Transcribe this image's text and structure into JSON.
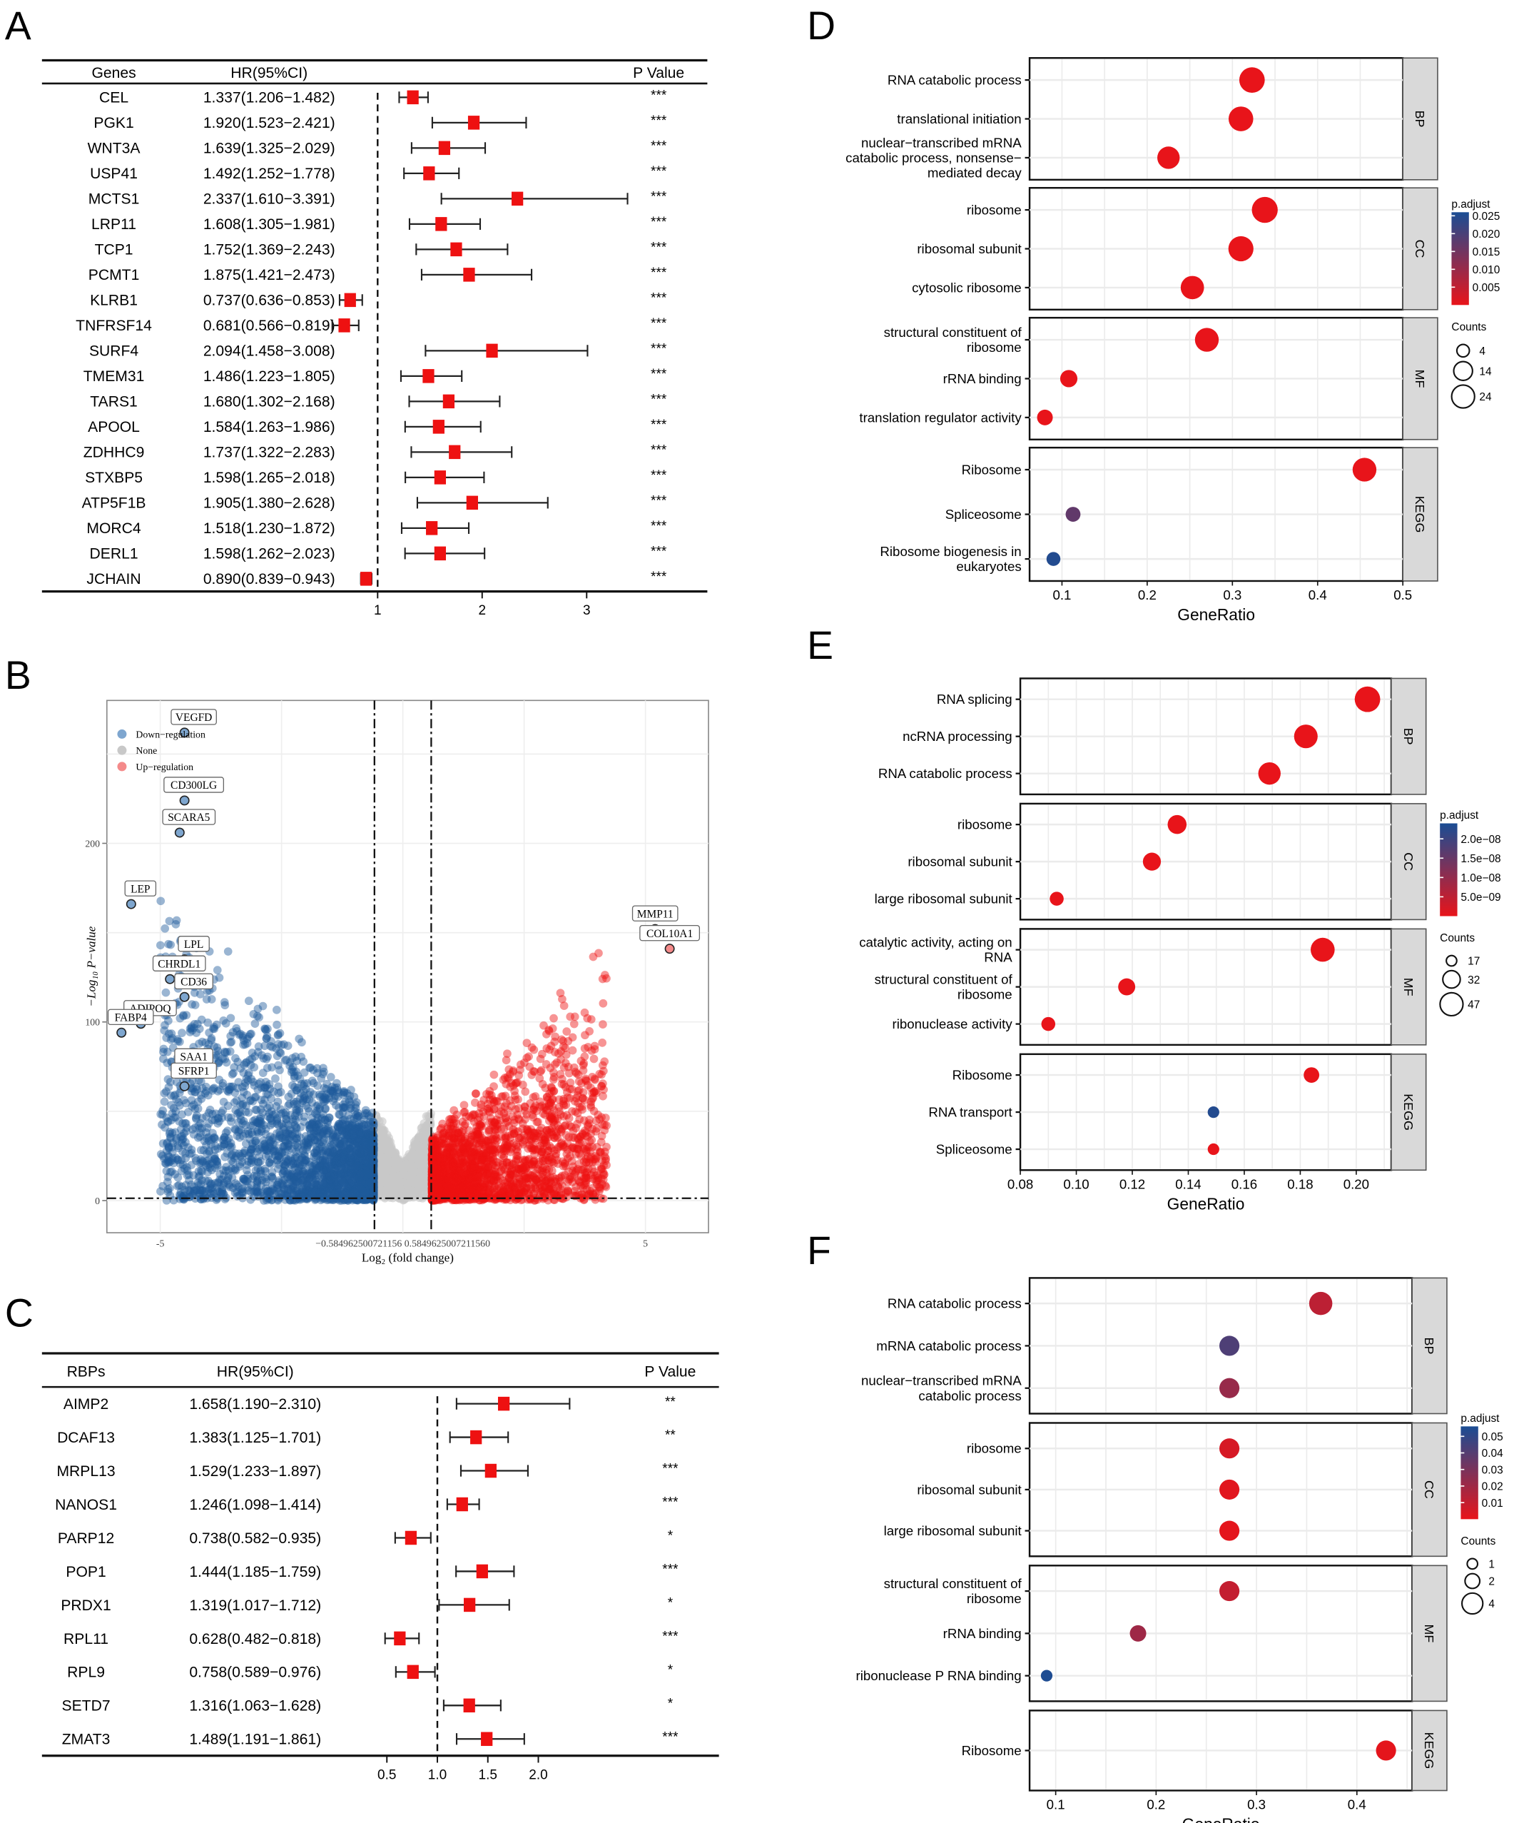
{
  "panels": {
    "A": "A",
    "B": "B",
    "C": "C",
    "D": "D",
    "E": "E",
    "F": "F"
  },
  "colors": {
    "marker": "#ee1111",
    "down": "#1f5a9c",
    "down_light": "#7ea6cf",
    "none": "#c8c8c8",
    "up": "#ee1111",
    "up_light": "#f48a8a",
    "padj_low": "#e8141a",
    "padj_high": "#1a4d94",
    "strip": "#d9d9d9"
  },
  "chart_data": [
    {
      "id": "A",
      "type": "forest",
      "headers": {
        "name": "Genes",
        "hr": "HR(95%CI)",
        "p": "P Value"
      },
      "x_ticks": [
        1,
        2,
        3
      ],
      "xlim": [
        0.55,
        3.6
      ],
      "ref_line": 1,
      "rows": [
        {
          "name": "CEL",
          "hr": 1.337,
          "lo": 1.206,
          "hi": 1.482,
          "label": "1.337(1.206−1.482)",
          "p": "***"
        },
        {
          "name": "PGK1",
          "hr": 1.92,
          "lo": 1.523,
          "hi": 2.421,
          "label": "1.920(1.523−2.421)",
          "p": "***"
        },
        {
          "name": "WNT3A",
          "hr": 1.639,
          "lo": 1.325,
          "hi": 2.029,
          "label": "1.639(1.325−2.029)",
          "p": "***"
        },
        {
          "name": "USP41",
          "hr": 1.492,
          "lo": 1.252,
          "hi": 1.778,
          "label": "1.492(1.252−1.778)",
          "p": "***"
        },
        {
          "name": "MCTS1",
          "hr": 2.337,
          "lo": 1.61,
          "hi": 3.391,
          "label": "2.337(1.610−3.391)",
          "p": "***"
        },
        {
          "name": "LRP11",
          "hr": 1.608,
          "lo": 1.305,
          "hi": 1.981,
          "label": "1.608(1.305−1.981)",
          "p": "***"
        },
        {
          "name": "TCP1",
          "hr": 1.752,
          "lo": 1.369,
          "hi": 2.243,
          "label": "1.752(1.369−2.243)",
          "p": "***"
        },
        {
          "name": "PCMT1",
          "hr": 1.875,
          "lo": 1.421,
          "hi": 2.473,
          "label": "1.875(1.421−2.473)",
          "p": "***"
        },
        {
          "name": "KLRB1",
          "hr": 0.737,
          "lo": 0.636,
          "hi": 0.853,
          "label": "0.737(0.636−0.853)",
          "p": "***"
        },
        {
          "name": "TNFRSF14",
          "hr": 0.681,
          "lo": 0.566,
          "hi": 0.819,
          "label": "0.681(0.566−0.819)",
          "p": "***"
        },
        {
          "name": "SURF4",
          "hr": 2.094,
          "lo": 1.458,
          "hi": 3.008,
          "label": "2.094(1.458−3.008)",
          "p": "***"
        },
        {
          "name": "TMEM31",
          "hr": 1.486,
          "lo": 1.223,
          "hi": 1.805,
          "label": "1.486(1.223−1.805)",
          "p": "***"
        },
        {
          "name": "TARS1",
          "hr": 1.68,
          "lo": 1.302,
          "hi": 2.168,
          "label": "1.680(1.302−2.168)",
          "p": "***"
        },
        {
          "name": "APOOL",
          "hr": 1.584,
          "lo": 1.263,
          "hi": 1.986,
          "label": "1.584(1.263−1.986)",
          "p": "***"
        },
        {
          "name": "ZDHHC9",
          "hr": 1.737,
          "lo": 1.322,
          "hi": 2.283,
          "label": "1.737(1.322−2.283)",
          "p": "***"
        },
        {
          "name": "STXBP5",
          "hr": 1.598,
          "lo": 1.265,
          "hi": 2.018,
          "label": "1.598(1.265−2.018)",
          "p": "***"
        },
        {
          "name": "ATP5F1B",
          "hr": 1.905,
          "lo": 1.38,
          "hi": 2.628,
          "label": "1.905(1.380−2.628)",
          "p": "***"
        },
        {
          "name": "MORC4",
          "hr": 1.518,
          "lo": 1.23,
          "hi": 1.872,
          "label": "1.518(1.230−1.872)",
          "p": "***"
        },
        {
          "name": "DERL1",
          "hr": 1.598,
          "lo": 1.262,
          "hi": 2.023,
          "label": "1.598(1.262−2.023)",
          "p": "***"
        },
        {
          "name": "JCHAIN",
          "hr": 0.89,
          "lo": 0.839,
          "hi": 0.943,
          "label": "0.890(0.839−0.943)",
          "p": "***"
        }
      ]
    },
    {
      "id": "B",
      "type": "scatter",
      "subtype": "volcano",
      "xlabel": "Log₂ (fold change)",
      "ylabel": "−Log₁₀ P−value",
      "xlim": [
        -6.1,
        6.3
      ],
      "ylim": [
        -18,
        280
      ],
      "x_ticks": [
        {
          "v": -5,
          "label": "-5"
        },
        {
          "v": 5,
          "label": "5"
        }
      ],
      "x_threshold_ticks_label": "−0.584962500721156 0.5849625007211560",
      "y_ticks": [
        0,
        100,
        200
      ],
      "x_thresholds": [
        -0.585,
        0.585
      ],
      "y_threshold": 1.3,
      "grid": true,
      "legend": {
        "position": "top-left",
        "items": [
          {
            "label": "Down−regulation",
            "color_key": "down_light"
          },
          {
            "label": "None",
            "color_key": "none"
          },
          {
            "label": "Up−regulation",
            "color_key": "up_light"
          }
        ]
      },
      "labeled_points": [
        {
          "gene": "VEGFD",
          "x": -4.5,
          "y": 262,
          "group": "down"
        },
        {
          "gene": "CD300LG",
          "x": -4.5,
          "y": 224,
          "group": "down"
        },
        {
          "gene": "SCARA5",
          "x": -4.6,
          "y": 206,
          "group": "down"
        },
        {
          "gene": "LEP",
          "x": -5.6,
          "y": 166,
          "group": "down"
        },
        {
          "gene": "LPL",
          "x": -4.5,
          "y": 135,
          "group": "down"
        },
        {
          "gene": "CHRDL1",
          "x": -4.8,
          "y": 124,
          "group": "down"
        },
        {
          "gene": "CD36",
          "x": -4.5,
          "y": 114,
          "group": "down"
        },
        {
          "gene": "ADIPOQ",
          "x": -5.4,
          "y": 99,
          "group": "down"
        },
        {
          "gene": "FABP4",
          "x": -5.8,
          "y": 94,
          "group": "down"
        },
        {
          "gene": "SAA1",
          "x": -4.5,
          "y": 72,
          "group": "down"
        },
        {
          "gene": "SFRP1",
          "x": -4.5,
          "y": 64,
          "group": "down"
        },
        {
          "gene": "MMP11",
          "x": 5.2,
          "y": 152,
          "group": "up"
        },
        {
          "gene": "COL10A1",
          "x": 5.5,
          "y": 141,
          "group": "up"
        }
      ]
    },
    {
      "id": "C",
      "type": "forest",
      "headers": {
        "name": "RBPs",
        "hr": "HR(95%CI)",
        "p": "P Value"
      },
      "x_ticks": [
        {
          "v": 0.5,
          "label": "0.5"
        },
        {
          "v": 1.0,
          "label": "1.0"
        },
        {
          "v": 1.5,
          "label": "1.5"
        },
        {
          "v": 2.0,
          "label": "2.0"
        }
      ],
      "xlim": [
        0.0,
        3.1
      ],
      "ref_line": 1,
      "rows": [
        {
          "name": "AIMP2",
          "hr": 1.658,
          "lo": 1.19,
          "hi": 2.31,
          "label": "1.658(1.190−2.310)",
          "p": "**"
        },
        {
          "name": "DCAF13",
          "hr": 1.383,
          "lo": 1.125,
          "hi": 1.701,
          "label": "1.383(1.125−1.701)",
          "p": "**"
        },
        {
          "name": "MRPL13",
          "hr": 1.529,
          "lo": 1.233,
          "hi": 1.897,
          "label": "1.529(1.233−1.897)",
          "p": "***"
        },
        {
          "name": "NANOS1",
          "hr": 1.246,
          "lo": 1.098,
          "hi": 1.414,
          "label": "1.246(1.098−1.414)",
          "p": "***"
        },
        {
          "name": "PARP12",
          "hr": 0.738,
          "lo": 0.582,
          "hi": 0.935,
          "label": "0.738(0.582−0.935)",
          "p": "*"
        },
        {
          "name": "POP1",
          "hr": 1.444,
          "lo": 1.185,
          "hi": 1.759,
          "label": "1.444(1.185−1.759)",
          "p": "***"
        },
        {
          "name": "PRDX1",
          "hr": 1.319,
          "lo": 1.017,
          "hi": 1.712,
          "label": "1.319(1.017−1.712)",
          "p": "*"
        },
        {
          "name": "RPL11",
          "hr": 0.628,
          "lo": 0.482,
          "hi": 0.818,
          "label": "0.628(0.482−0.818)",
          "p": "***"
        },
        {
          "name": "RPL9",
          "hr": 0.758,
          "lo": 0.589,
          "hi": 0.976,
          "label": "0.758(0.589−0.976)",
          "p": "*"
        },
        {
          "name": "SETD7",
          "hr": 1.316,
          "lo": 1.063,
          "hi": 1.628,
          "label": "1.316(1.063−1.628)",
          "p": "*"
        },
        {
          "name": "ZMAT3",
          "hr": 1.489,
          "lo": 1.191,
          "hi": 1.861,
          "label": "1.489(1.191−1.861)",
          "p": "***"
        }
      ]
    },
    {
      "id": "D",
      "type": "scatter",
      "subtype": "dotplot",
      "xlabel": "GeneRatio",
      "xlim": [
        0.062,
        0.5
      ],
      "x_ticks": [
        {
          "v": 0.1,
          "label": "0.1"
        },
        {
          "v": 0.2,
          "label": "0.2"
        },
        {
          "v": 0.3,
          "label": "0.3"
        },
        {
          "v": 0.4,
          "label": "0.4"
        },
        {
          "v": 0.5,
          "label": "0.5"
        }
      ],
      "color_legend": {
        "title": "p.adjust",
        "min": 0.0,
        "max": 0.026,
        "ticks": [
          "0.025",
          "0.020",
          "0.015",
          "0.010",
          "0.005"
        ],
        "tick_values": [
          0.025,
          0.02,
          0.015,
          0.01,
          0.005
        ]
      },
      "size_legend": {
        "title": "Counts",
        "items": [
          4,
          14,
          24
        ]
      },
      "facets": [
        {
          "strip": "BP",
          "terms": [
            {
              "label": [
                "RNA catabolic process"
              ],
              "x": 0.323,
              "count": 24,
              "padj": 0.0
            },
            {
              "label": [
                "translational initiation"
              ],
              "x": 0.31,
              "count": 22,
              "padj": 0.0
            },
            {
              "label": [
                "nuclear−transcribed mRNA",
                "catabolic process, nonsense−",
                "mediated decay"
              ],
              "x": 0.225,
              "count": 17,
              "padj": 0.0
            }
          ]
        },
        {
          "strip": "CC",
          "terms": [
            {
              "label": [
                "ribosome"
              ],
              "x": 0.338,
              "count": 25,
              "padj": 0.0
            },
            {
              "label": [
                "ribosomal subunit"
              ],
              "x": 0.31,
              "count": 23,
              "padj": 0.0
            },
            {
              "label": [
                "cytosolic ribosome"
              ],
              "x": 0.253,
              "count": 19,
              "padj": 0.0
            }
          ]
        },
        {
          "strip": "MF",
          "terms": [
            {
              "label": [
                "structural constituent of",
                "ribosome"
              ],
              "x": 0.27,
              "count": 20,
              "padj": 0.0
            },
            {
              "label": [
                "rRNA binding"
              ],
              "x": 0.108,
              "count": 8,
              "padj": 0.0
            },
            {
              "label": [
                "translation regulator activity"
              ],
              "x": 0.08,
              "count": 6,
              "padj": 0.0
            }
          ]
        },
        {
          "strip": "KEGG",
          "terms": [
            {
              "label": [
                "Ribosome"
              ],
              "x": 0.455,
              "count": 20,
              "padj": 0.0
            },
            {
              "label": [
                "Spliceosome"
              ],
              "x": 0.113,
              "count": 5,
              "padj": 0.017
            },
            {
              "label": [
                "Ribosome biogenesis in",
                "eukaryotes"
              ],
              "x": 0.09,
              "count": 4,
              "padj": 0.025
            }
          ]
        }
      ]
    },
    {
      "id": "E",
      "type": "scatter",
      "subtype": "dotplot",
      "xlabel": "GeneRatio",
      "xlim": [
        0.08,
        0.2125
      ],
      "x_ticks": [
        {
          "v": 0.08,
          "label": "0.08"
        },
        {
          "v": 0.1,
          "label": "0.10"
        },
        {
          "v": 0.12,
          "label": "0.12"
        },
        {
          "v": 0.14,
          "label": "0.14"
        },
        {
          "v": 0.16,
          "label": "0.16"
        },
        {
          "v": 0.18,
          "label": "0.18"
        },
        {
          "v": 0.2,
          "label": "0.20"
        }
      ],
      "color_legend": {
        "title": "p.adjust",
        "min": 0.0,
        "max": 2.4e-08,
        "ticks": [
          "2.0e−08",
          "1.5e−08",
          "1.0e−08",
          "5.0e−09"
        ],
        "tick_values": [
          2e-08,
          1.5e-08,
          1e-08,
          5e-09
        ]
      },
      "size_legend": {
        "title": "Counts",
        "items": [
          17,
          32,
          47
        ]
      },
      "facets": [
        {
          "strip": "BP",
          "terms": [
            {
              "label": [
                "RNA splicing"
              ],
              "x": 0.204,
              "count": 47,
              "padj": 0.0
            },
            {
              "label": [
                "ncRNA processing"
              ],
              "x": 0.182,
              "count": 42,
              "padj": 0.0
            },
            {
              "label": [
                "RNA catabolic process"
              ],
              "x": 0.169,
              "count": 39,
              "padj": 0.0
            }
          ]
        },
        {
          "strip": "CC",
          "terms": [
            {
              "label": [
                "ribosome"
              ],
              "x": 0.136,
              "count": 31,
              "padj": 0.0
            },
            {
              "label": [
                "ribosomal subunit"
              ],
              "x": 0.127,
              "count": 29,
              "padj": 0.0
            },
            {
              "label": [
                "large ribosomal subunit"
              ],
              "x": 0.093,
              "count": 21,
              "padj": 0.0
            }
          ]
        },
        {
          "strip": "MF",
          "terms": [
            {
              "label": [
                "catalytic activity, acting on",
                "RNA"
              ],
              "x": 0.188,
              "count": 43,
              "padj": 0.0
            },
            {
              "label": [
                "structural constituent of",
                "ribosome"
              ],
              "x": 0.118,
              "count": 27,
              "padj": 0.0
            },
            {
              "label": [
                "ribonuclease activity"
              ],
              "x": 0.09,
              "count": 21,
              "padj": 0.0
            }
          ]
        },
        {
          "strip": "KEGG",
          "terms": [
            {
              "label": [
                "Ribosome"
              ],
              "x": 0.184,
              "count": 24,
              "padj": 0.0
            },
            {
              "label": [
                "RNA transport"
              ],
              "x": 0.149,
              "count": 17,
              "padj": 2.3e-08
            },
            {
              "label": [
                "Spliceosome"
              ],
              "x": 0.149,
              "count": 17,
              "padj": 0.0
            }
          ]
        }
      ]
    },
    {
      "id": "F",
      "type": "scatter",
      "subtype": "dotplot",
      "xlabel": "GeneRatio",
      "xlim": [
        0.074,
        0.455
      ],
      "x_ticks": [
        {
          "v": 0.1,
          "label": "0.1"
        },
        {
          "v": 0.2,
          "label": "0.2"
        },
        {
          "v": 0.3,
          "label": "0.3"
        },
        {
          "v": 0.4,
          "label": "0.4"
        }
      ],
      "color_legend": {
        "title": "p.adjust",
        "min": 0.0,
        "max": 0.056,
        "ticks": [
          "0.05",
          "0.04",
          "0.03",
          "0.02",
          "0.01"
        ],
        "tick_values": [
          0.05,
          0.04,
          0.03,
          0.02,
          0.01
        ]
      },
      "size_legend": {
        "title": "Counts",
        "items": [
          1,
          2,
          4
        ]
      },
      "facets": [
        {
          "strip": "BP",
          "terms": [
            {
              "label": [
                "RNA catabolic process"
              ],
              "x": 0.364,
              "count": 4,
              "padj": 0.012
            },
            {
              "label": [
                "mRNA catabolic process"
              ],
              "x": 0.273,
              "count": 3,
              "padj": 0.042
            },
            {
              "label": [
                "nuclear−transcribed mRNA",
                "catabolic process"
              ],
              "x": 0.273,
              "count": 3,
              "padj": 0.022
            }
          ]
        },
        {
          "strip": "CC",
          "terms": [
            {
              "label": [
                "ribosome"
              ],
              "x": 0.273,
              "count": 3,
              "padj": 0.005
            },
            {
              "label": [
                "ribosomal subunit"
              ],
              "x": 0.273,
              "count": 3,
              "padj": 0.002
            },
            {
              "label": [
                "large ribosomal subunit"
              ],
              "x": 0.273,
              "count": 3,
              "padj": 0.001
            }
          ]
        },
        {
          "strip": "MF",
          "terms": [
            {
              "label": [
                "structural constituent of",
                "ribosome"
              ],
              "x": 0.273,
              "count": 3,
              "padj": 0.01
            },
            {
              "label": [
                "rRNA binding"
              ],
              "x": 0.182,
              "count": 2,
              "padj": 0.02
            },
            {
              "label": [
                "ribonuclease P RNA binding"
              ],
              "x": 0.091,
              "count": 1,
              "padj": 0.055
            }
          ]
        },
        {
          "strip": "KEGG",
          "terms": [
            {
              "label": [
                "Ribosome"
              ],
              "x": 0.429,
              "count": 3,
              "padj": 0.001
            }
          ]
        }
      ]
    }
  ]
}
